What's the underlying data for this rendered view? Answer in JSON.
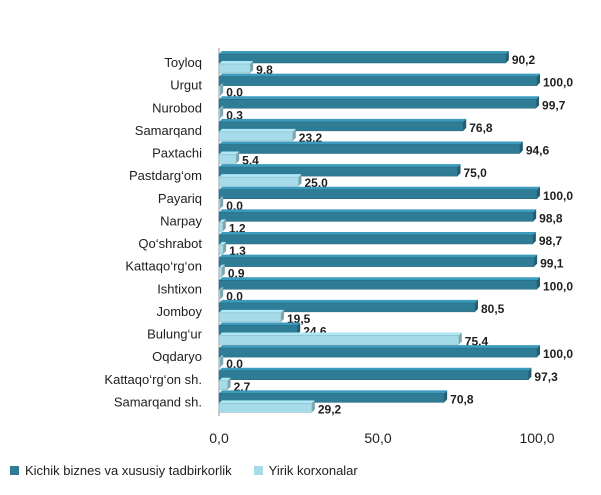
{
  "chart_data": {
    "type": "bar",
    "orientation": "horizontal",
    "categories": [
      "Toyloq",
      "Urgut",
      "Nurobod",
      "Samarqand",
      "Paxtachi",
      "Pastdarg‘om",
      "Payariq",
      "Narpay",
      "Qo‘shrabot",
      "Kattaqo‘rg‘on",
      "Ishtixon",
      "Jomboy",
      "Bulung‘ur",
      "Oqdaryo",
      "Kattaqo‘rg‘on  sh.",
      "Samarqand sh."
    ],
    "series": [
      {
        "name": "Kichik biznes va xususiy tadbirkorlik",
        "color": "#2e7c96",
        "values": [
          90.2,
          100.0,
          99.7,
          76.8,
          94.6,
          75.0,
          100.0,
          98.8,
          98.7,
          99.1,
          100.0,
          80.5,
          24.6,
          100.0,
          97.3,
          70.8
        ],
        "labels": [
          "90,2",
          "100,0",
          "99,7",
          "76,8",
          "94,6",
          "75,0",
          "100,0",
          "98,8",
          "98,7",
          "99,1",
          "100,0",
          "80,5",
          "24,6",
          "100,0",
          "97,3",
          "70,8"
        ]
      },
      {
        "name": "Yirik korxonalar",
        "color": "#a6dce9",
        "values": [
          9.8,
          0.0,
          0.3,
          23.2,
          5.4,
          25.0,
          0.0,
          1.2,
          1.3,
          0.9,
          0.0,
          19.5,
          75.4,
          0.0,
          2.7,
          29.2
        ],
        "labels": [
          "9,8",
          "0,0",
          "0,3",
          "23,2",
          "5,4",
          "25,0",
          "0,0",
          "1,2",
          "1,3",
          "0,9",
          "0,0",
          "19,5",
          "75,4",
          "0,0",
          "2,7",
          "29,2"
        ]
      }
    ],
    "xlim": [
      0,
      100
    ],
    "xticks": [
      "0,0",
      "50,0",
      "100,0"
    ],
    "grid": false,
    "legend_position": "bottom"
  }
}
